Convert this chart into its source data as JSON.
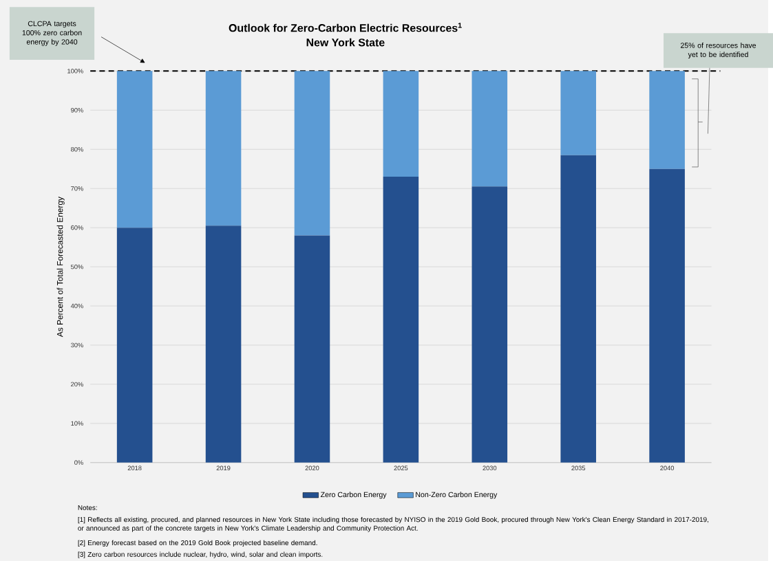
{
  "chart_data": {
    "type": "bar",
    "title": "Outlook for Zero-Carbon Electric Resources$^{1}$",
    "subtitle": "New York State",
    "ylabel": "As Percent of Total Forecasted Energy",
    "categories": [
      "2018",
      "2019",
      "2020",
      "2025",
      "2030",
      "2035",
      "2040"
    ],
    "stacked": true,
    "series": [
      {
        "name": "Zero Carbon Energy",
        "color": "#24508f",
        "values": [
          60,
          60.5,
          58,
          73,
          70.5,
          78.5,
          75
        ]
      },
      {
        "name": "Non-Zero Carbon Energy",
        "color": "#5b9bd5",
        "values": [
          40,
          39.5,
          42,
          27,
          29.5,
          21.5,
          25
        ]
      }
    ],
    "ylim": [
      0,
      100
    ],
    "yticks": [
      {
        "value": 0,
        "label": "0%"
      },
      {
        "value": 10,
        "label": "10%"
      },
      {
        "value": 20,
        "label": "20%"
      },
      {
        "value": 30,
        "label": "30%"
      },
      {
        "value": 40,
        "label": "40%"
      },
      {
        "value": 50,
        "label": "50%"
      },
      {
        "value": 60,
        "label": "60%"
      },
      {
        "value": 70,
        "label": "70%"
      },
      {
        "value": 80,
        "label": "80%"
      },
      {
        "value": 90,
        "label": "90%"
      },
      {
        "value": 100,
        "label": "100%"
      }
    ],
    "grid": "y",
    "legend": "bottom",
    "ref_lines": [
      {
        "axis": "y",
        "value": 100,
        "color": "#000000",
        "line_style": "dashed"
      }
    ],
    "annotations": [
      "CLCPA targets 100% zero carbon energy by 2040",
      "25% of resources have yet to be identified",
      "Notes:",
      "[1] Reflects all existing, procured, and planned resources in New York State including those forecasted by NYISO in the 2019 Gold Book, procured through New York's Clean Energy Standard in 2017-2019, or announced as part of the concrete targets in New York's Climate Leadership and Community Protection Act.",
      "[2] Energy forecast based on the 2019 Gold Book projected baseline demand.",
      "[3] Zero carbon resources include nuclear, hydro, wind, solar and clean imports."
    ]
  }
}
